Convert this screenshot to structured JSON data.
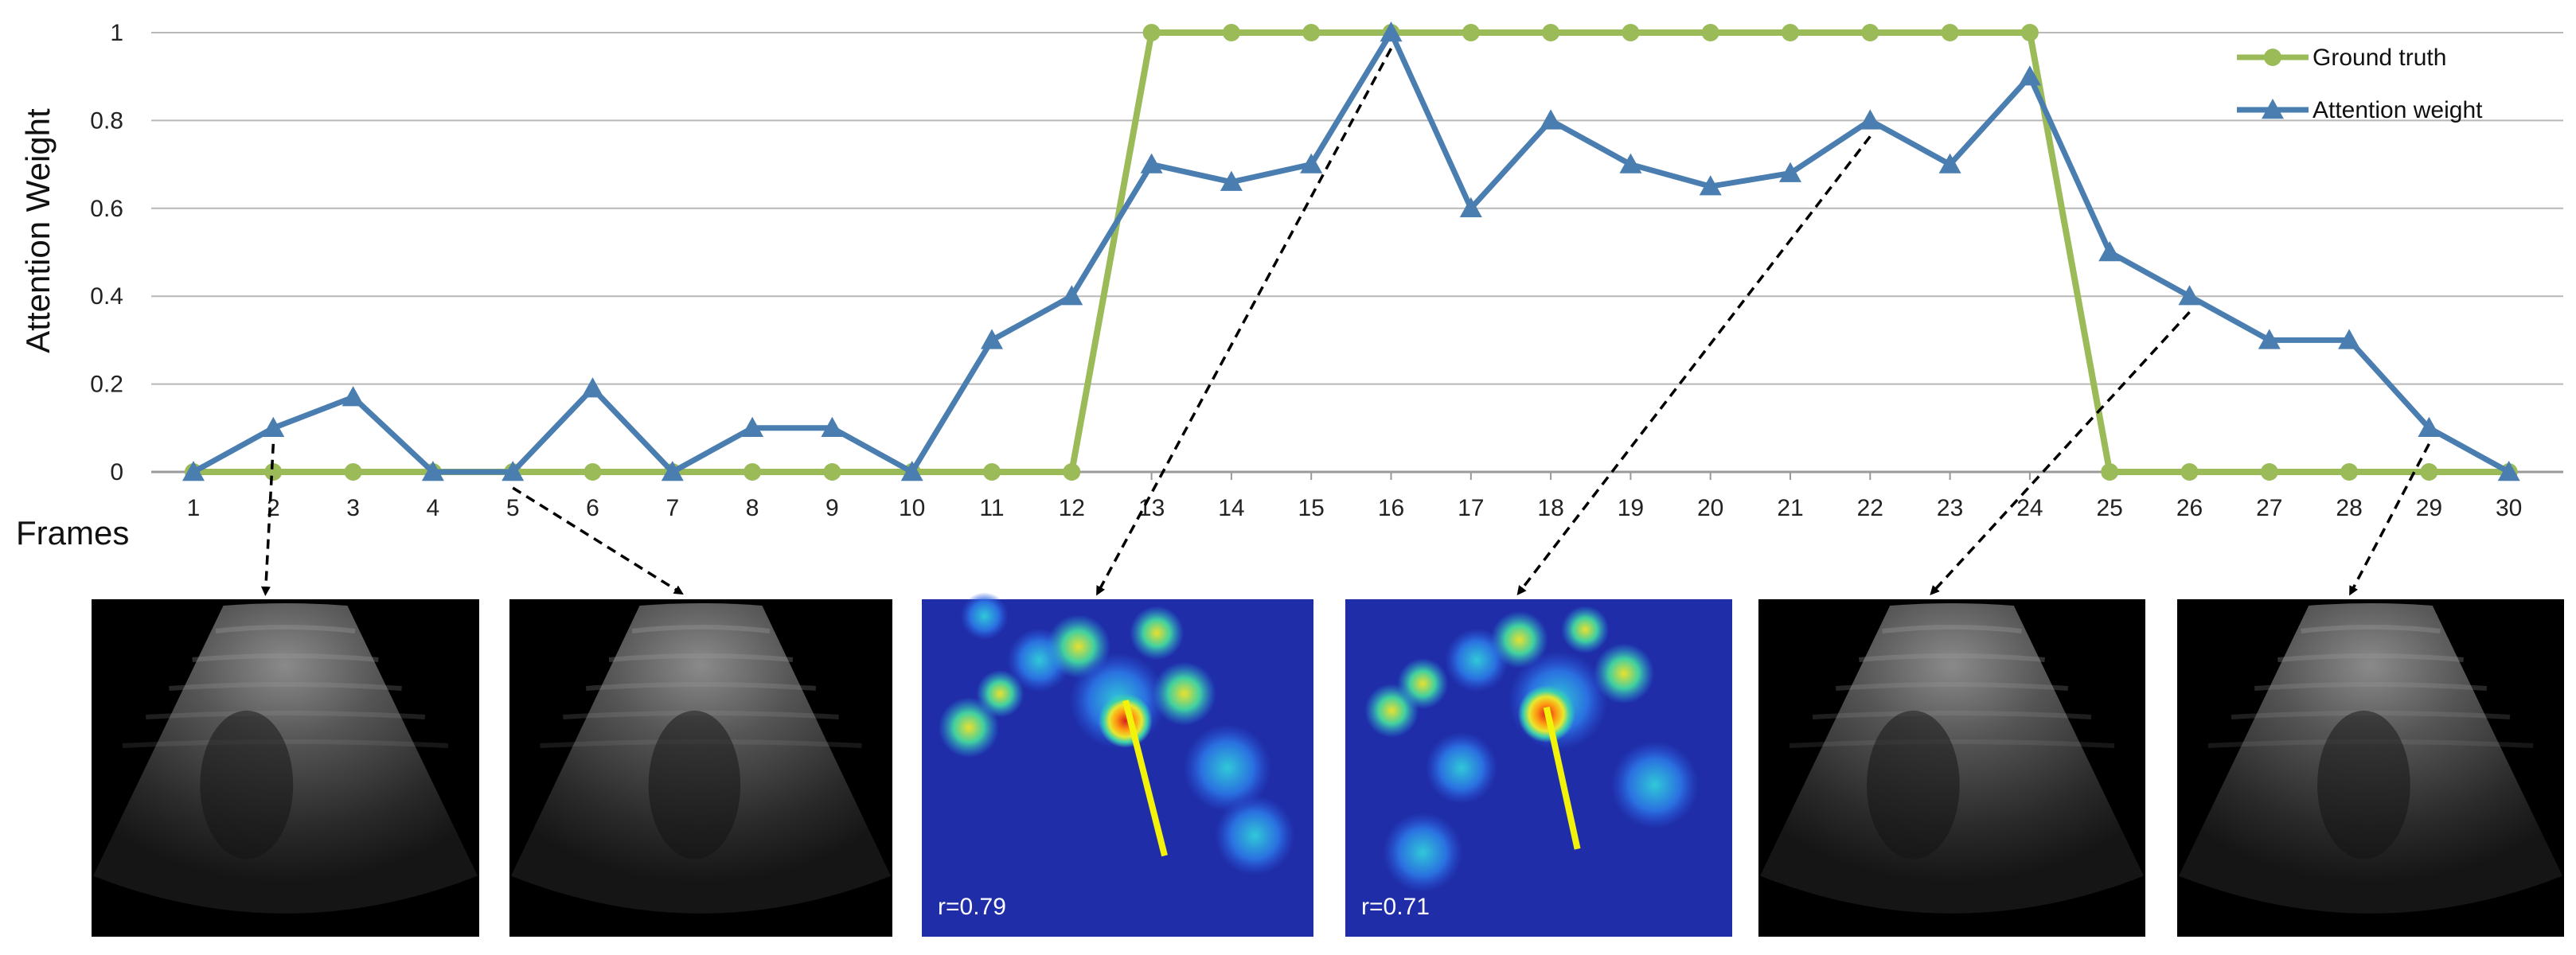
{
  "chart_data": {
    "type": "line",
    "xlabel": "Frames",
    "ylabel": "Attention Weight",
    "x": [
      1,
      2,
      3,
      4,
      5,
      6,
      7,
      8,
      9,
      10,
      11,
      12,
      13,
      14,
      15,
      16,
      17,
      18,
      19,
      20,
      21,
      22,
      23,
      24,
      25,
      26,
      27,
      28,
      29,
      30
    ],
    "ylim": [
      0,
      1
    ],
    "yticks": [
      "0",
      "0.2",
      "0.4",
      "0.6",
      "0.8",
      "1"
    ],
    "ytick_values": [
      0,
      0.2,
      0.4,
      0.6,
      0.8,
      1
    ],
    "grid": "horizontal",
    "legend_position": "top-right",
    "series": [
      {
        "name": "Ground truth",
        "color": "#9bbb59",
        "marker": "circle",
        "values": [
          0,
          0,
          0,
          0,
          0,
          0,
          0,
          0,
          0,
          0,
          0,
          0,
          1,
          1,
          1,
          1,
          1,
          1,
          1,
          1,
          1,
          1,
          1,
          1,
          0,
          0,
          0,
          0,
          0,
          0
        ]
      },
      {
        "name": "Attention weight",
        "color": "#4a7eb0",
        "marker": "triangle",
        "values": [
          0,
          0.1,
          0.17,
          0,
          0,
          0.19,
          0,
          0.1,
          0.1,
          0,
          0.3,
          0.4,
          0.7,
          0.66,
          0.7,
          1.0,
          0.6,
          0.8,
          0.7,
          0.65,
          0.68,
          0.8,
          0.7,
          0.9,
          0.5,
          0.4,
          0.3,
          0.3,
          0.1,
          0
        ]
      }
    ],
    "thumbnails": [
      {
        "frame": 2,
        "kind": "ultrasound",
        "label": ""
      },
      {
        "frame": 5,
        "kind": "ultrasound",
        "label": ""
      },
      {
        "frame": 16,
        "kind": "heatmap",
        "label": "r=0.79"
      },
      {
        "frame": 22,
        "kind": "heatmap",
        "label": "r=0.71"
      },
      {
        "frame": 26,
        "kind": "ultrasound",
        "label": ""
      },
      {
        "frame": 29,
        "kind": "ultrasound",
        "label": ""
      }
    ]
  }
}
